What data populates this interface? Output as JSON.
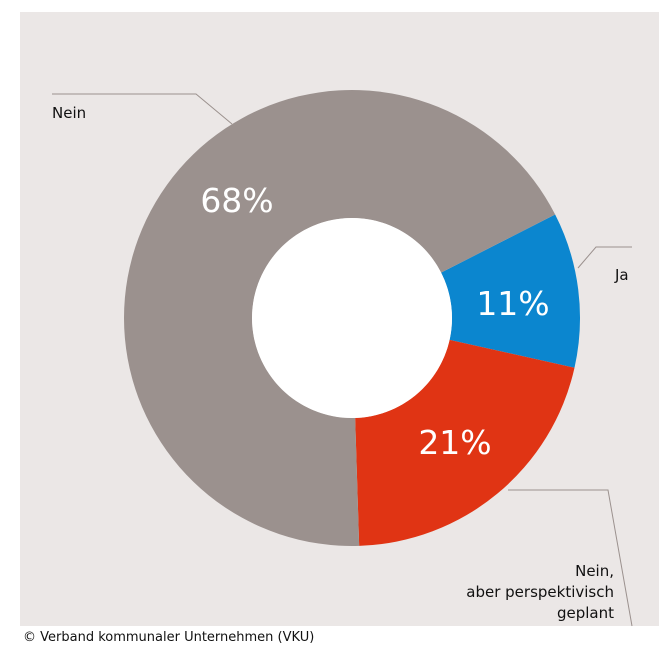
{
  "source": "© Verband kommunaler Unternehmen (VKU)",
  "colors": {
    "background": "#ebe7e6",
    "nein": "#9b918e",
    "ja": "#0b86cf",
    "nein_geplant": "#e03414",
    "connector": "#9b918e"
  },
  "chart_data": {
    "type": "pie",
    "style": "donut",
    "title": "",
    "slices": [
      {
        "label": "Ja",
        "value": 11,
        "value_label": "11%",
        "color": "#0b86cf"
      },
      {
        "label": "Nein, aber perspektivisch geplant",
        "value": 21,
        "value_label": "21%",
        "color": "#e03414"
      },
      {
        "label": "Nein",
        "value": 68,
        "value_label": "68%",
        "color": "#9b918e"
      }
    ],
    "legend": "none",
    "category_labels": {
      "ja": "Ja",
      "nein": "Nein",
      "nein_geplant": [
        "Nein,",
        "aber perspektivisch",
        "geplant"
      ]
    }
  }
}
